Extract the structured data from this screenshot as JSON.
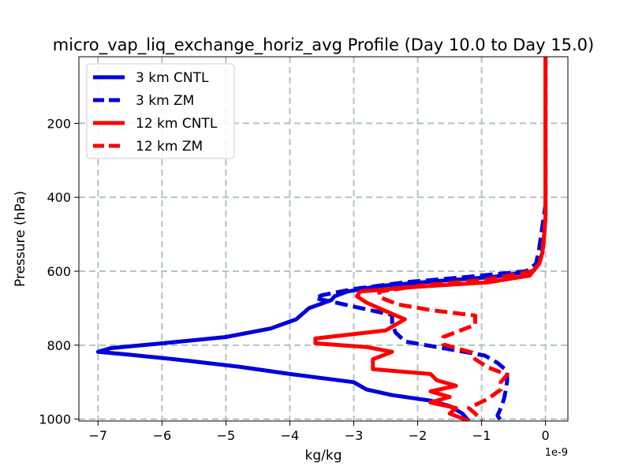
{
  "chart_data": {
    "type": "line",
    "title": "micro_vap_liq_exchange_horiz_avg Profile (Day 10.0 to Day 15.0)",
    "xlabel": "kg/kg",
    "ylabel": "Pressure (hPa)",
    "x_scale_label": "1e-9",
    "xlim": [
      -7.3,
      0.35
    ],
    "ylim": [
      1005,
      20
    ],
    "y_inverted": true,
    "grid": true,
    "legend_position": "upper-left",
    "xticks": [
      -7,
      -6,
      -5,
      -4,
      -3,
      -2,
      -1,
      0
    ],
    "xtick_labels": [
      "−7",
      "−6",
      "−5",
      "−4",
      "−3",
      "−2",
      "−1",
      "0"
    ],
    "yticks": [
      200,
      400,
      600,
      800,
      1000
    ],
    "ytick_labels": [
      "200",
      "400",
      "600",
      "800",
      "1000"
    ],
    "series": [
      {
        "name": "3 km CNTL",
        "color": "#0000dd",
        "style": "solid",
        "points": [
          [
            0,
            20
          ],
          [
            0,
            300
          ],
          [
            0,
            450
          ],
          [
            -0.02,
            500
          ],
          [
            -0.05,
            550
          ],
          [
            -0.1,
            580
          ],
          [
            -0.2,
            600
          ],
          [
            -0.8,
            615
          ],
          [
            -1.8,
            628
          ],
          [
            -2.6,
            640
          ],
          [
            -3.1,
            655
          ],
          [
            -3.3,
            668
          ],
          [
            -3.35,
            678
          ],
          [
            -3.7,
            700
          ],
          [
            -3.9,
            730
          ],
          [
            -4.3,
            755
          ],
          [
            -5.0,
            778
          ],
          [
            -6.0,
            795
          ],
          [
            -6.8,
            808
          ],
          [
            -7.0,
            818
          ],
          [
            -6.5,
            826
          ],
          [
            -5.8,
            838
          ],
          [
            -4.8,
            858
          ],
          [
            -4.0,
            878
          ],
          [
            -3.0,
            900
          ],
          [
            -2.8,
            920
          ],
          [
            -2.4,
            935
          ],
          [
            -1.8,
            950
          ],
          [
            -1.5,
            965
          ],
          [
            -1.3,
            985
          ],
          [
            -1.2,
            1005
          ]
        ]
      },
      {
        "name": "3 km ZM",
        "color": "#0000dd",
        "style": "dashed",
        "points": [
          [
            0,
            20
          ],
          [
            0,
            300
          ],
          [
            0,
            420
          ],
          [
            -0.05,
            480
          ],
          [
            -0.1,
            540
          ],
          [
            -0.15,
            580
          ],
          [
            -0.3,
            600
          ],
          [
            -1.2,
            615
          ],
          [
            -2.2,
            630
          ],
          [
            -3.0,
            648
          ],
          [
            -3.5,
            665
          ],
          [
            -3.6,
            673
          ],
          [
            -3.2,
            688
          ],
          [
            -2.8,
            703
          ],
          [
            -2.4,
            718
          ],
          [
            -2.4,
            738
          ],
          [
            -2.35,
            765
          ],
          [
            -2.2,
            790
          ],
          [
            -1.6,
            808
          ],
          [
            -0.95,
            828
          ],
          [
            -0.75,
            848
          ],
          [
            -0.6,
            870
          ],
          [
            -0.6,
            895
          ],
          [
            -0.62,
            920
          ],
          [
            -0.65,
            945
          ],
          [
            -0.7,
            970
          ],
          [
            -0.75,
            990
          ],
          [
            -0.7,
            1005
          ]
        ]
      },
      {
        "name": "12 km CNTL",
        "color": "#ff0000",
        "style": "solid",
        "points": [
          [
            0,
            20
          ],
          [
            0,
            100
          ],
          [
            0,
            300
          ],
          [
            0,
            450
          ],
          [
            -0.02,
            500
          ],
          [
            -0.05,
            550
          ],
          [
            -0.1,
            580
          ],
          [
            -0.25,
            612
          ],
          [
            -0.9,
            630
          ],
          [
            -2.0,
            642
          ],
          [
            -2.9,
            655
          ],
          [
            -2.95,
            668
          ],
          [
            -2.8,
            685
          ],
          [
            -2.5,
            708
          ],
          [
            -2.2,
            730
          ],
          [
            -2.5,
            760
          ],
          [
            -3.6,
            782
          ],
          [
            -3.6,
            795
          ],
          [
            -2.8,
            805
          ],
          [
            -2.4,
            818
          ],
          [
            -2.7,
            838
          ],
          [
            -2.7,
            865
          ],
          [
            -1.8,
            878
          ],
          [
            -1.7,
            895
          ],
          [
            -1.4,
            910
          ],
          [
            -1.8,
            925
          ],
          [
            -1.5,
            940
          ],
          [
            -1.8,
            955
          ],
          [
            -1.4,
            970
          ],
          [
            -1.5,
            985
          ],
          [
            -1.2,
            1005
          ]
        ]
      },
      {
        "name": "12 km ZM",
        "color": "#ff0000",
        "style": "dashed",
        "points": [
          [
            0,
            20
          ],
          [
            0,
            300
          ],
          [
            0,
            450
          ],
          [
            -0.02,
            500
          ],
          [
            -0.05,
            550
          ],
          [
            -0.1,
            580
          ],
          [
            -0.2,
            600
          ],
          [
            -0.9,
            622
          ],
          [
            -1.9,
            638
          ],
          [
            -2.6,
            655
          ],
          [
            -2.6,
            670
          ],
          [
            -2.3,
            690
          ],
          [
            -1.8,
            705
          ],
          [
            -1.1,
            720
          ],
          [
            -1.1,
            745
          ],
          [
            -1.6,
            778
          ],
          [
            -1.6,
            798
          ],
          [
            -1.15,
            820
          ],
          [
            -1.1,
            838
          ],
          [
            -0.9,
            860
          ],
          [
            -0.6,
            880
          ],
          [
            -0.7,
            900
          ],
          [
            -0.7,
            920
          ],
          [
            -0.9,
            945
          ],
          [
            -1.2,
            970
          ],
          [
            -1.1,
            985
          ],
          [
            -1.0,
            1005
          ]
        ]
      }
    ]
  }
}
